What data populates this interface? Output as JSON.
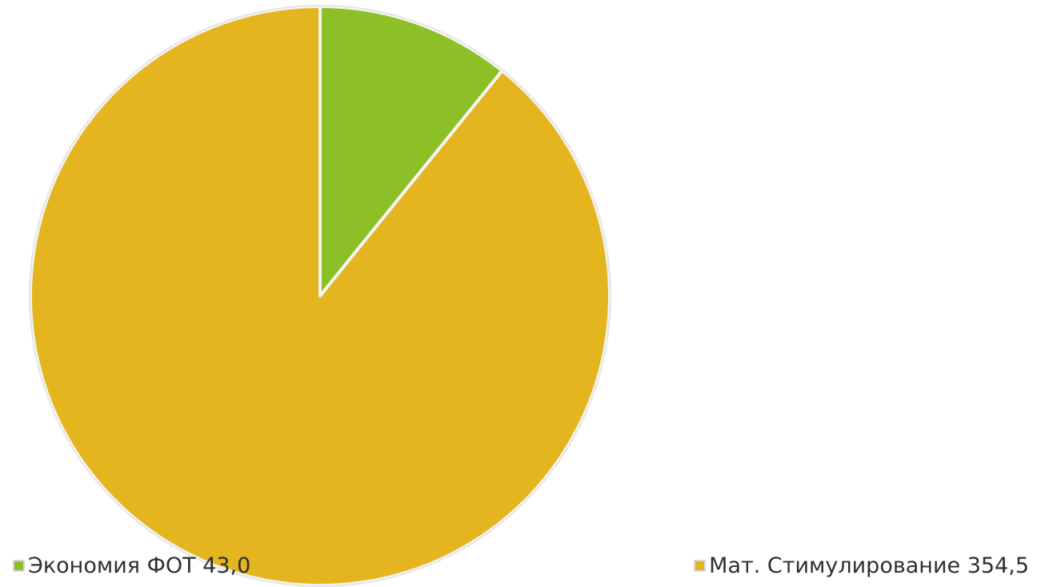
{
  "chart_data": {
    "type": "pie",
    "title": "",
    "start_angle_deg": 0,
    "direction": "clockwise",
    "slices": [
      {
        "label": "Экономия ФОТ",
        "value": 43.0,
        "display_value": "43,0",
        "color": "#8dbf26"
      },
      {
        "label": "Мат. Стимулирование",
        "value": 354.5,
        "display_value": "354,5",
        "color": "#e4b51f"
      }
    ],
    "legend_position": "bottom"
  },
  "legend": [
    {
      "text": "Экономия ФОТ 43,0",
      "color": "#8dbf26"
    },
    {
      "text": "Мат. Стимулирование 354,5",
      "color": "#e4b51f"
    }
  ]
}
